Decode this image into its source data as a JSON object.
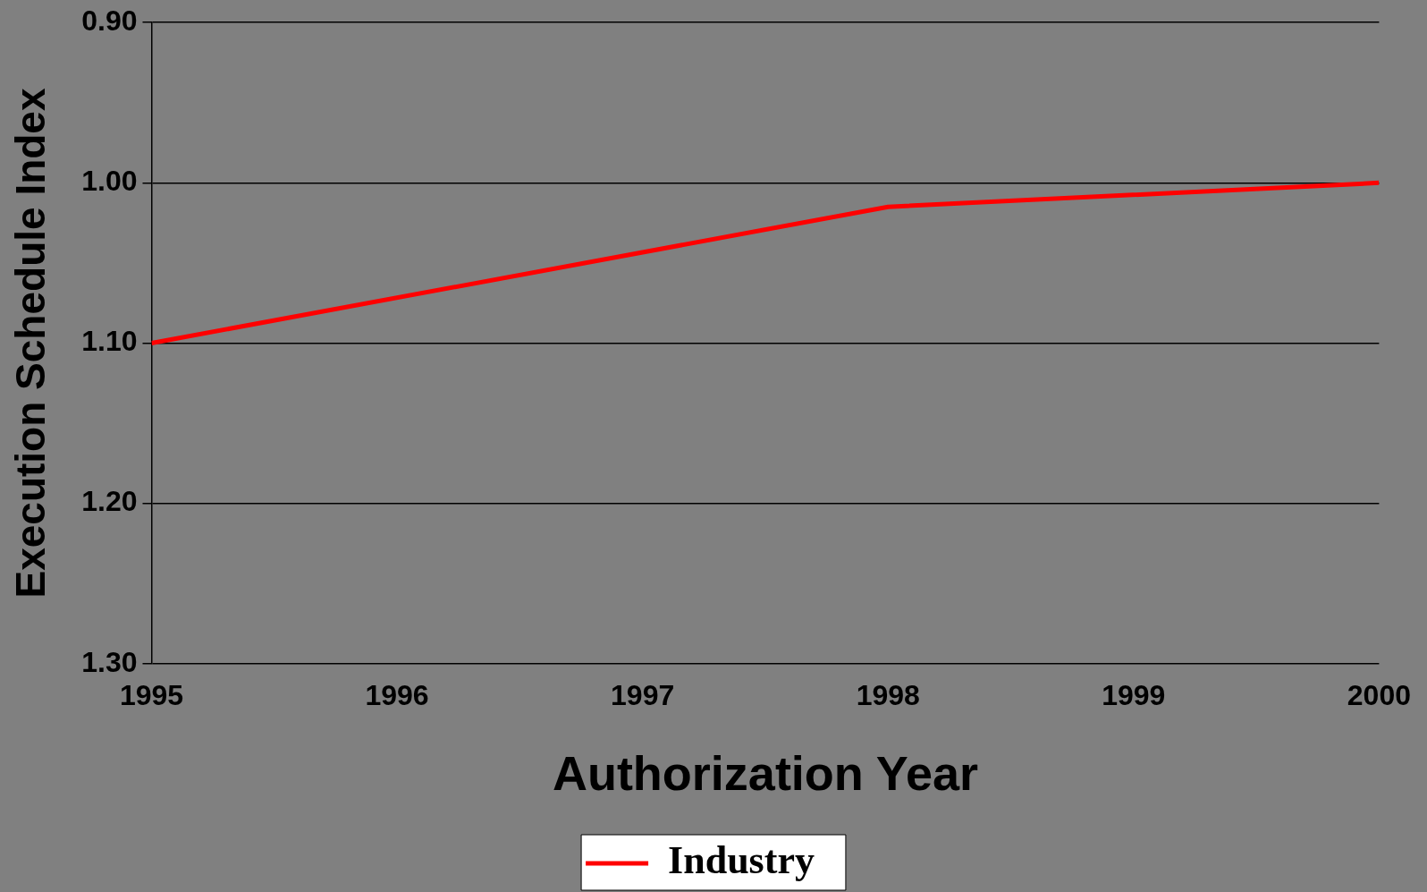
{
  "chart_data": {
    "type": "line",
    "xlabel": "Authorization Year",
    "ylabel": "Execution Schedule Index",
    "x": [
      1995,
      1998,
      2000
    ],
    "series": [
      {
        "name": "Industry",
        "color": "#ff0000",
        "values": [
          1.1,
          1.015,
          1.0
        ]
      }
    ],
    "xlim": [
      1995,
      2000
    ],
    "xticks": [
      1995,
      1996,
      1997,
      1998,
      1999,
      2000
    ],
    "ylim": [
      1.3,
      0.9
    ],
    "yticks": [
      {
        "value": 0.9,
        "label": "0.90"
      },
      {
        "value": 1.0,
        "label": "1.00"
      },
      {
        "value": 1.1,
        "label": "1.10"
      },
      {
        "value": 1.2,
        "label": "1.20"
      },
      {
        "value": 1.3,
        "label": "1.30"
      }
    ],
    "grid": "y",
    "legend": "bottom",
    "marker": "none",
    "line_style": "solid"
  }
}
